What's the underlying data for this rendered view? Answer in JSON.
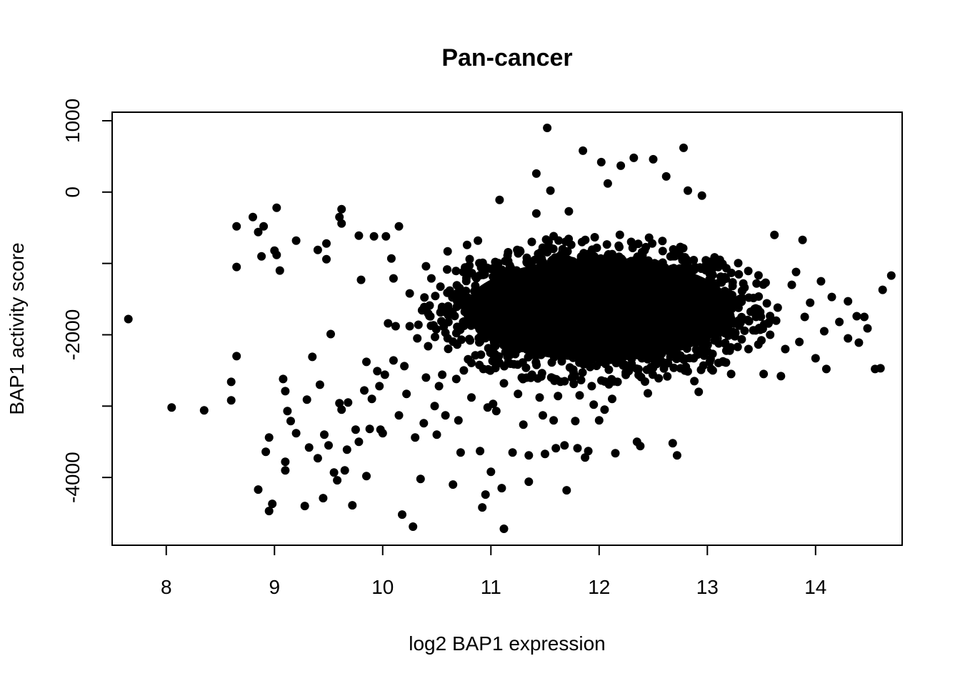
{
  "chart_data": {
    "type": "scatter",
    "title": "Pan-cancer",
    "xlabel": "log2 BAP1 expression",
    "ylabel": "BAP1 activity score",
    "xlim": [
      7.5,
      14.8
    ],
    "ylim": [
      -4950,
      1120
    ],
    "x_ticks": [
      8,
      9,
      10,
      11,
      12,
      13,
      14
    ],
    "x_tick_labels": [
      "8",
      "9",
      "10",
      "11",
      "12",
      "13",
      "14"
    ],
    "y_ticks": [
      -4000,
      -3000,
      -2000,
      -1000,
      0,
      1000
    ],
    "y_tick_labels": [
      "-4000",
      "",
      "-2000",
      "",
      "0",
      "1000"
    ],
    "grid": false,
    "legend": "none",
    "marker_color": "#000000",
    "dense_cluster": {
      "center_x": 12.0,
      "center_y": -1650,
      "x_range": [
        10.5,
        13.6
      ],
      "y_range": [
        -2500,
        -500
      ]
    },
    "points": [
      [
        7.65,
        -1780
      ],
      [
        8.05,
        -3020
      ],
      [
        8.35,
        -3060
      ],
      [
        8.6,
        -2660
      ],
      [
        8.6,
        -2920
      ],
      [
        8.65,
        -2300
      ],
      [
        8.65,
        -1050
      ],
      [
        8.65,
        -480
      ],
      [
        8.8,
        -350
      ],
      [
        8.85,
        -560
      ],
      [
        8.85,
        -4170
      ],
      [
        8.88,
        -900
      ],
      [
        8.9,
        -480
      ],
      [
        8.92,
        -3640
      ],
      [
        8.95,
        -3440
      ],
      [
        8.95,
        -4470
      ],
      [
        8.98,
        -4370
      ],
      [
        9.0,
        -820
      ],
      [
        9.02,
        -880
      ],
      [
        9.02,
        -220
      ],
      [
        9.05,
        -1100
      ],
      [
        9.08,
        -2620
      ],
      [
        9.1,
        -3780
      ],
      [
        9.1,
        -3900
      ],
      [
        9.1,
        -2790
      ],
      [
        9.12,
        -3070
      ],
      [
        9.15,
        -3210
      ],
      [
        9.2,
        -3380
      ],
      [
        9.2,
        -680
      ],
      [
        9.28,
        -4400
      ],
      [
        9.3,
        -2910
      ],
      [
        9.32,
        -3580
      ],
      [
        9.35,
        -2310
      ],
      [
        9.4,
        -3730
      ],
      [
        9.4,
        -810
      ],
      [
        9.42,
        -2700
      ],
      [
        9.45,
        -4290
      ],
      [
        9.46,
        -3400
      ],
      [
        9.48,
        -940
      ],
      [
        9.48,
        -720
      ],
      [
        9.5,
        -3550
      ],
      [
        9.52,
        -1990
      ],
      [
        9.55,
        -3930
      ],
      [
        9.58,
        -4040
      ],
      [
        9.6,
        -350
      ],
      [
        9.6,
        -2960
      ],
      [
        9.62,
        -3050
      ],
      [
        9.62,
        -440
      ],
      [
        9.62,
        -240
      ],
      [
        9.65,
        -3900
      ],
      [
        9.67,
        -3610
      ],
      [
        9.68,
        -2950
      ],
      [
        9.72,
        -4390
      ],
      [
        9.75,
        -3330
      ],
      [
        9.78,
        -610
      ],
      [
        9.78,
        -3500
      ],
      [
        9.8,
        -1230
      ],
      [
        9.83,
        -2780
      ],
      [
        9.85,
        -2380
      ],
      [
        9.85,
        -3980
      ],
      [
        9.88,
        -3320
      ],
      [
        9.9,
        -2900
      ],
      [
        9.92,
        -620
      ],
      [
        9.95,
        -2510
      ],
      [
        9.97,
        -2720
      ],
      [
        9.98,
        -3330
      ],
      [
        10.0,
        -3380
      ],
      [
        10.02,
        -2560
      ],
      [
        10.03,
        -620
      ],
      [
        10.05,
        -1840
      ],
      [
        10.08,
        -930
      ],
      [
        10.1,
        -1210
      ],
      [
        10.1,
        -2360
      ],
      [
        10.12,
        -1880
      ],
      [
        10.15,
        -480
      ],
      [
        10.15,
        -3130
      ],
      [
        10.18,
        -4520
      ],
      [
        10.2,
        -2440
      ],
      [
        10.22,
        -2830
      ],
      [
        10.25,
        -1880
      ],
      [
        10.25,
        -1420
      ],
      [
        10.28,
        -4690
      ],
      [
        10.3,
        -3440
      ],
      [
        10.32,
        -2050
      ],
      [
        10.33,
        -1860
      ],
      [
        10.35,
        -4020
      ],
      [
        10.38,
        -3240
      ],
      [
        10.4,
        -2600
      ],
      [
        10.4,
        -1040
      ],
      [
        10.42,
        -2160
      ],
      [
        10.45,
        -1210
      ],
      [
        10.48,
        -3000
      ],
      [
        10.5,
        -3400
      ],
      [
        10.52,
        -2720
      ],
      [
        10.55,
        -2560
      ],
      [
        10.58,
        -3130
      ],
      [
        10.6,
        -830
      ],
      [
        10.62,
        -1380
      ],
      [
        10.65,
        -4100
      ],
      [
        10.68,
        -2620
      ],
      [
        10.7,
        -3200
      ],
      [
        10.72,
        -3650
      ],
      [
        10.75,
        -2500
      ],
      [
        10.78,
        -740
      ],
      [
        10.8,
        -2060
      ],
      [
        10.82,
        -2880
      ],
      [
        10.85,
        -1490
      ],
      [
        10.88,
        -680
      ],
      [
        10.9,
        -3630
      ],
      [
        10.92,
        -4420
      ],
      [
        10.93,
        -2480
      ],
      [
        10.95,
        -4240
      ],
      [
        10.97,
        -3020
      ],
      [
        11.0,
        -3920
      ],
      [
        11.02,
        -2970
      ],
      [
        11.05,
        -3070
      ],
      [
        11.08,
        -110
      ],
      [
        11.1,
        -4150
      ],
      [
        11.12,
        -2680
      ],
      [
        11.12,
        -4720
      ],
      [
        11.18,
        -1730
      ],
      [
        11.2,
        -3650
      ],
      [
        11.25,
        -2830
      ],
      [
        11.3,
        -3260
      ],
      [
        11.35,
        -3690
      ],
      [
        11.35,
        -4060
      ],
      [
        11.38,
        -2560
      ],
      [
        11.42,
        -300
      ],
      [
        11.42,
        260
      ],
      [
        11.45,
        -2880
      ],
      [
        11.48,
        -3130
      ],
      [
        11.5,
        -3670
      ],
      [
        11.52,
        900
      ],
      [
        11.55,
        20
      ],
      [
        11.58,
        -3200
      ],
      [
        11.6,
        -3590
      ],
      [
        11.62,
        -2860
      ],
      [
        11.68,
        -3550
      ],
      [
        11.7,
        -4180
      ],
      [
        11.72,
        -270
      ],
      [
        11.75,
        -2600
      ],
      [
        11.78,
        -3210
      ],
      [
        11.8,
        -3590
      ],
      [
        11.82,
        -2850
      ],
      [
        11.85,
        580
      ],
      [
        11.87,
        -3720
      ],
      [
        11.9,
        -3630
      ],
      [
        11.95,
        -2980
      ],
      [
        12.0,
        -3200
      ],
      [
        12.02,
        420
      ],
      [
        12.05,
        -3050
      ],
      [
        12.08,
        120
      ],
      [
        12.12,
        -2900
      ],
      [
        12.15,
        -3660
      ],
      [
        12.2,
        370
      ],
      [
        12.25,
        -2460
      ],
      [
        12.32,
        480
      ],
      [
        12.35,
        -3500
      ],
      [
        12.38,
        -3560
      ],
      [
        12.45,
        -2820
      ],
      [
        12.5,
        460
      ],
      [
        12.55,
        -2610
      ],
      [
        12.62,
        220
      ],
      [
        12.68,
        -3520
      ],
      [
        12.72,
        -3690
      ],
      [
        12.78,
        620
      ],
      [
        12.82,
        20
      ],
      [
        12.88,
        -2650
      ],
      [
        12.92,
        -2800
      ],
      [
        12.95,
        -50
      ],
      [
        13.05,
        -2500
      ],
      [
        13.15,
        -2380
      ],
      [
        13.22,
        -2550
      ],
      [
        13.28,
        -2170
      ],
      [
        13.38,
        -2200
      ],
      [
        13.45,
        -1750
      ],
      [
        13.52,
        -2550
      ],
      [
        13.58,
        -2000
      ],
      [
        13.62,
        -600
      ],
      [
        13.65,
        -1620
      ],
      [
        13.68,
        -2580
      ],
      [
        13.72,
        -2200
      ],
      [
        13.78,
        -1300
      ],
      [
        13.82,
        -1120
      ],
      [
        13.85,
        -2100
      ],
      [
        13.88,
        -670
      ],
      [
        13.9,
        -1750
      ],
      [
        13.95,
        -1550
      ],
      [
        14.0,
        -2330
      ],
      [
        14.05,
        -1250
      ],
      [
        14.08,
        -1950
      ],
      [
        14.1,
        -2480
      ],
      [
        14.15,
        -1470
      ],
      [
        14.22,
        -1820
      ],
      [
        14.3,
        -2050
      ],
      [
        14.3,
        -1530
      ],
      [
        14.38,
        -1740
      ],
      [
        14.4,
        -2110
      ],
      [
        14.45,
        -1750
      ],
      [
        14.48,
        -1910
      ],
      [
        14.55,
        -2480
      ],
      [
        14.6,
        -2470
      ],
      [
        14.62,
        -1370
      ],
      [
        14.7,
        -1170
      ]
    ]
  }
}
